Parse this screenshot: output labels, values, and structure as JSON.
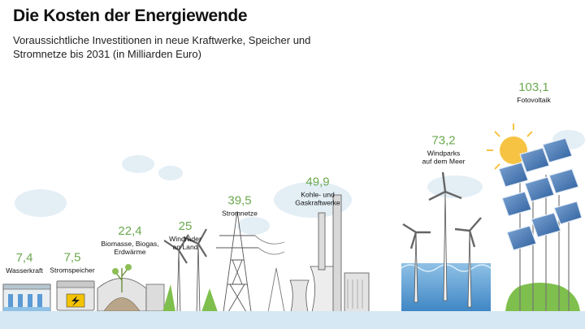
{
  "title": "Die Kosten der Energiewende",
  "subtitle_line1": "Voraussichtliche Investitionen in neue Kraftwerke, Speicher und",
  "subtitle_line2": "Stromnetze bis 2031 (in Milliarden Euro)",
  "colors": {
    "value": "#6aa84f",
    "text": "#111111",
    "ground": "#cfe5f2",
    "water": "#5b9bd5",
    "green": "#7fbf4d",
    "sun": "#f6c343"
  },
  "chart_data": {
    "type": "bar",
    "title": "Die Kosten der Energiewende",
    "unit": "Milliarden Euro",
    "categories": [
      {
        "id": "wasserkraft",
        "label": [
          "Wasserkraft"
        ],
        "value": 7.4,
        "value_label": "7,4",
        "icon": "dam-icon"
      },
      {
        "id": "stromspeicher",
        "label": [
          "Stromspeicher"
        ],
        "value": 7.5,
        "value_label": "7,5",
        "icon": "battery-icon"
      },
      {
        "id": "biomasse",
        "label": [
          "Biomasse, Biogas,",
          "Erdwärme"
        ],
        "value": 22.4,
        "value_label": "22,4",
        "icon": "biogas-plant-icon"
      },
      {
        "id": "wind-land",
        "label": [
          "Windräder",
          "an Land"
        ],
        "value": 25,
        "value_label": "25",
        "icon": "wind-turbine-icon"
      },
      {
        "id": "stromnetze",
        "label": [
          "Stromnetze"
        ],
        "value": 39.5,
        "value_label": "39,5",
        "icon": "power-pylon-icon"
      },
      {
        "id": "kohle-gas",
        "label": [
          "Kohle- und",
          "Gaskraftwerke"
        ],
        "value": 49.9,
        "value_label": "49,9",
        "icon": "power-plant-icon"
      },
      {
        "id": "wind-meer",
        "label": [
          "Windparks",
          "auf dem Meer"
        ],
        "value": 73.2,
        "value_label": "73,2",
        "icon": "offshore-wind-icon"
      },
      {
        "id": "fotovoltaik",
        "label": [
          "Fotovoltaik"
        ],
        "value": 103.1,
        "value_label": "103,1",
        "icon": "solar-panel-icon"
      }
    ]
  }
}
